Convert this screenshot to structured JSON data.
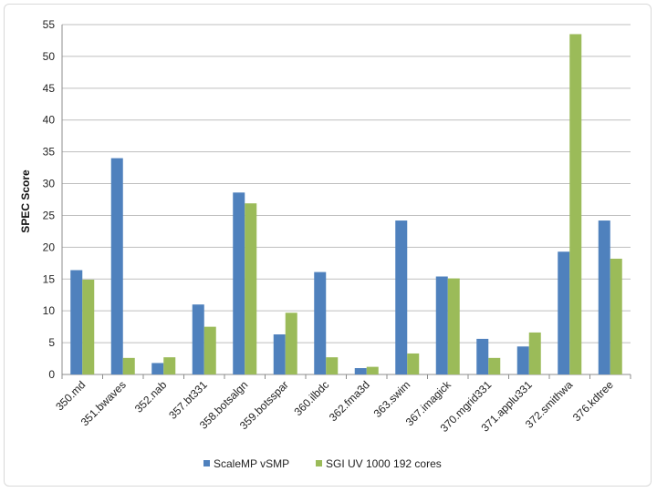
{
  "chart_data": {
    "type": "bar",
    "title": "",
    "xlabel": "",
    "ylabel": "SPEC Score",
    "ylim": [
      0,
      55
    ],
    "ytick_step": 5,
    "grid": true,
    "legend_position": "bottom",
    "categories": [
      "350.md",
      "351.bwaves",
      "352.nab",
      "357.bt331",
      "358.botsalgn",
      "359.botsspar",
      "360.ilbdc",
      "362.fma3d",
      "363.swim",
      "367.imagick",
      "370.mgrid331",
      "371.applu331",
      "372.smithwa",
      "376.kdtree"
    ],
    "series": [
      {
        "name": "ScaleMP vSMP",
        "color": "#4f81bd",
        "values": [
          16.4,
          34.0,
          1.8,
          11.0,
          28.6,
          6.3,
          16.1,
          1.0,
          24.2,
          15.4,
          5.6,
          4.4,
          19.3,
          24.2
        ]
      },
      {
        "name": "SGI UV 1000 192 cores",
        "color": "#9bbb59",
        "values": [
          14.9,
          2.6,
          2.7,
          7.5,
          26.9,
          9.7,
          2.7,
          1.2,
          3.3,
          15.1,
          2.6,
          6.6,
          53.5,
          18.2
        ]
      }
    ]
  }
}
